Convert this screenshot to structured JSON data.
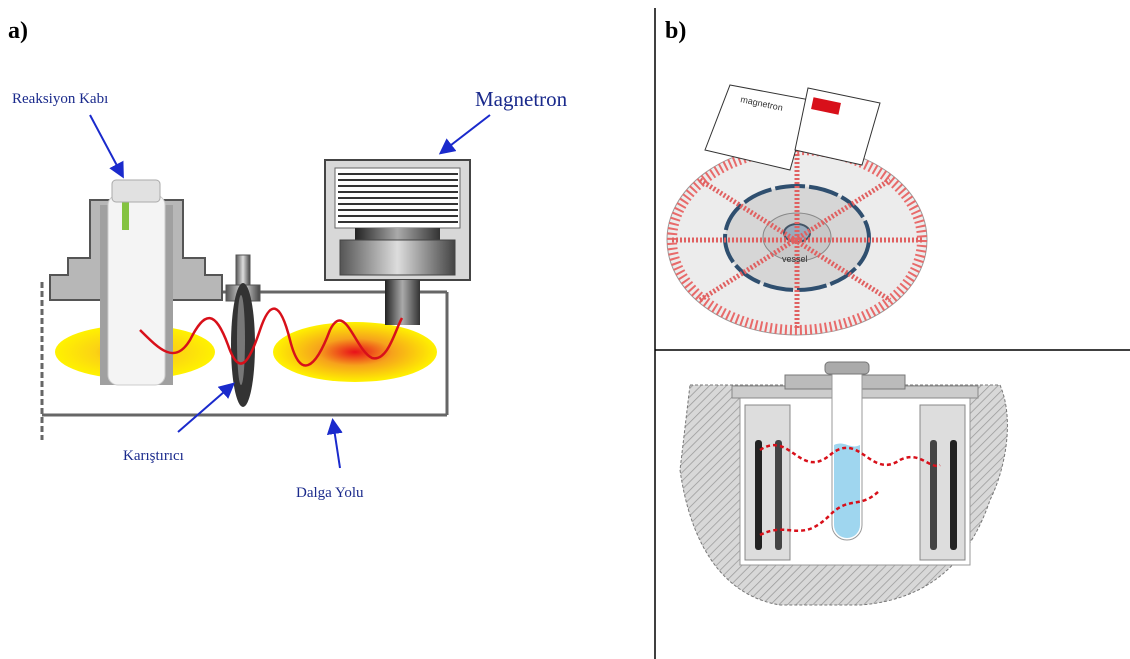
{
  "panel_a": {
    "label": "a)",
    "reaction_vessel": "Reaksiyon Kabı",
    "magnetron": "Magnetron",
    "stirrer": "Karıştırıcı",
    "waveguide": "Dalga Yolu"
  },
  "panel_b": {
    "label": "b)",
    "magnetron": "magnetron",
    "vessel": "vessel"
  }
}
